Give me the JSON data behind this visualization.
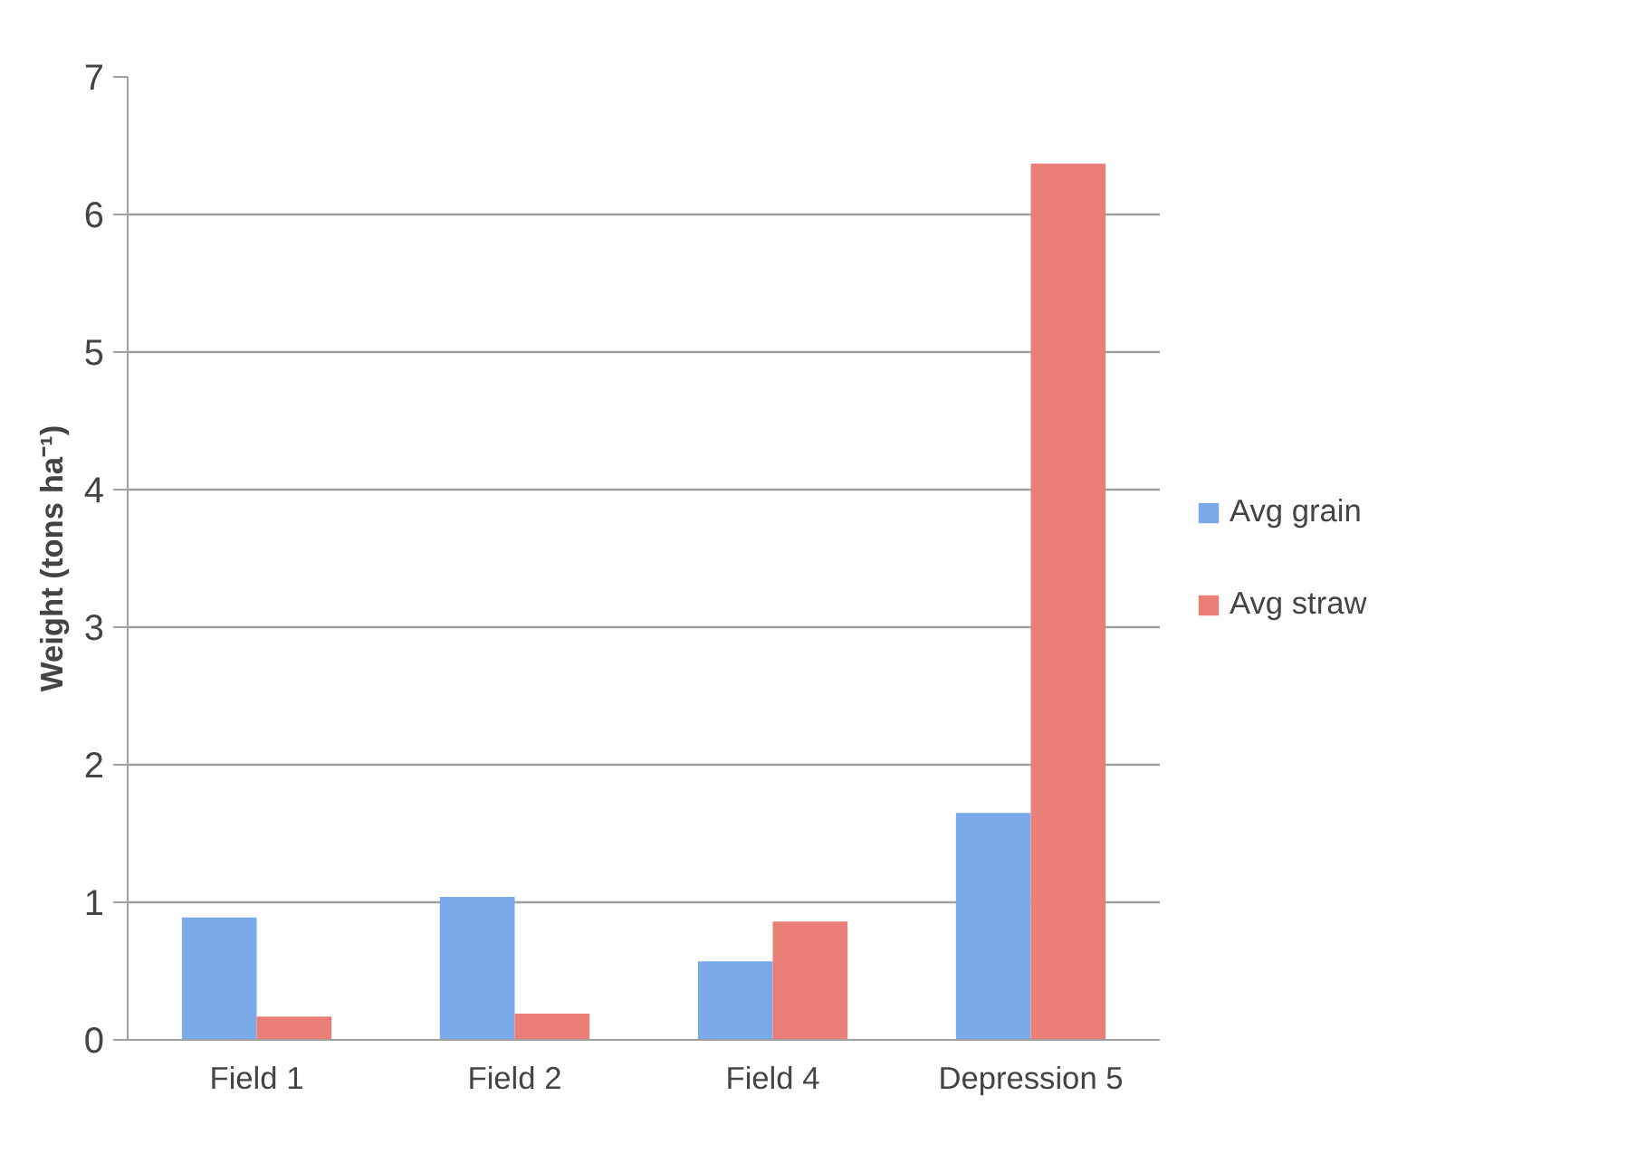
{
  "chart_data": {
    "type": "bar",
    "ylabel": "Weight (tons ha⁻¹)",
    "categories": [
      "Field 1",
      "Field 2",
      "Field 4",
      "Depression 5"
    ],
    "series": [
      {
        "name": "Avg grain",
        "color": "#7aaaea",
        "values": [
          0.89,
          1.04,
          0.57,
          1.65
        ]
      },
      {
        "name": "Avg straw",
        "color": "#ea7f78",
        "values": [
          0.17,
          0.19,
          0.86,
          6.37
        ]
      }
    ],
    "ylim": [
      0,
      7
    ],
    "yticks": [
      0,
      1,
      2,
      3,
      4,
      5,
      6,
      7
    ],
    "grid": "y",
    "legend": "right"
  }
}
